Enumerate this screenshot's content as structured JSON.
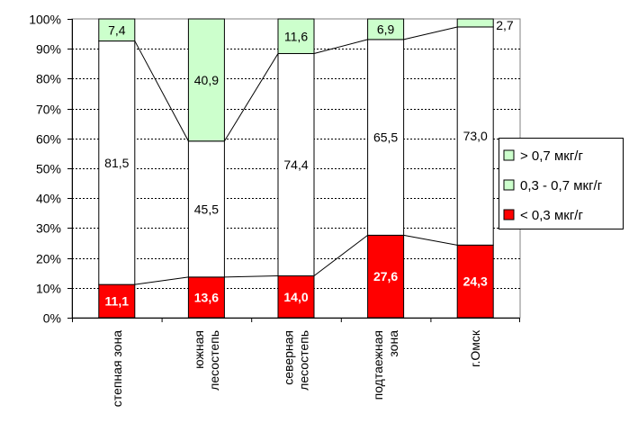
{
  "chart_data": {
    "type": "bar",
    "stacked": true,
    "normalized_percent": true,
    "categories": [
      "степная зона",
      "южная лесостепь",
      "северная лесостепь",
      "подтаежная зона",
      "г.Омск"
    ],
    "category_lines": [
      [
        "степная зона"
      ],
      [
        "южная",
        "лесостепь"
      ],
      [
        "северная",
        "лесостепь"
      ],
      [
        "подтаежная",
        "зона"
      ],
      [
        "г.Омск"
      ]
    ],
    "series": [
      {
        "name": "< 0,3 мкг/г",
        "values": [
          11.1,
          13.6,
          14.0,
          27.6,
          24.3
        ],
        "labels": [
          "11,1",
          "13,6",
          "14,0",
          "27,6",
          "24,3"
        ],
        "color": "#ff0000"
      },
      {
        "name": "0,3 - 0,7 мкг/г",
        "values": [
          81.5,
          45.5,
          74.4,
          65.5,
          73.0
        ],
        "labels": [
          "81,5",
          "45,5",
          "74,4",
          "65,5",
          "73,0"
        ],
        "color": "#ffffff"
      },
      {
        "name": "> 0,7 мкг/г",
        "values": [
          7.4,
          40.9,
          11.6,
          6.9,
          2.7
        ],
        "labels": [
          "7,4",
          "40,9",
          "11,6",
          "6,9",
          "2,7"
        ],
        "color": "#ccffcc"
      }
    ],
    "legend_order": [
      2,
      1,
      0
    ],
    "legend_swatch_colors": [
      "#ccffcc",
      "#ccffcc",
      "#ff0000"
    ],
    "yticks": [
      "0%",
      "10%",
      "20%",
      "30%",
      "40%",
      "50%",
      "60%",
      "70%",
      "80%",
      "90%",
      "100%"
    ],
    "ylim": [
      0,
      100
    ],
    "grid": true,
    "legend_position": "right",
    "series_lines": true,
    "title": "",
    "xlabel": "",
    "ylabel": ""
  }
}
